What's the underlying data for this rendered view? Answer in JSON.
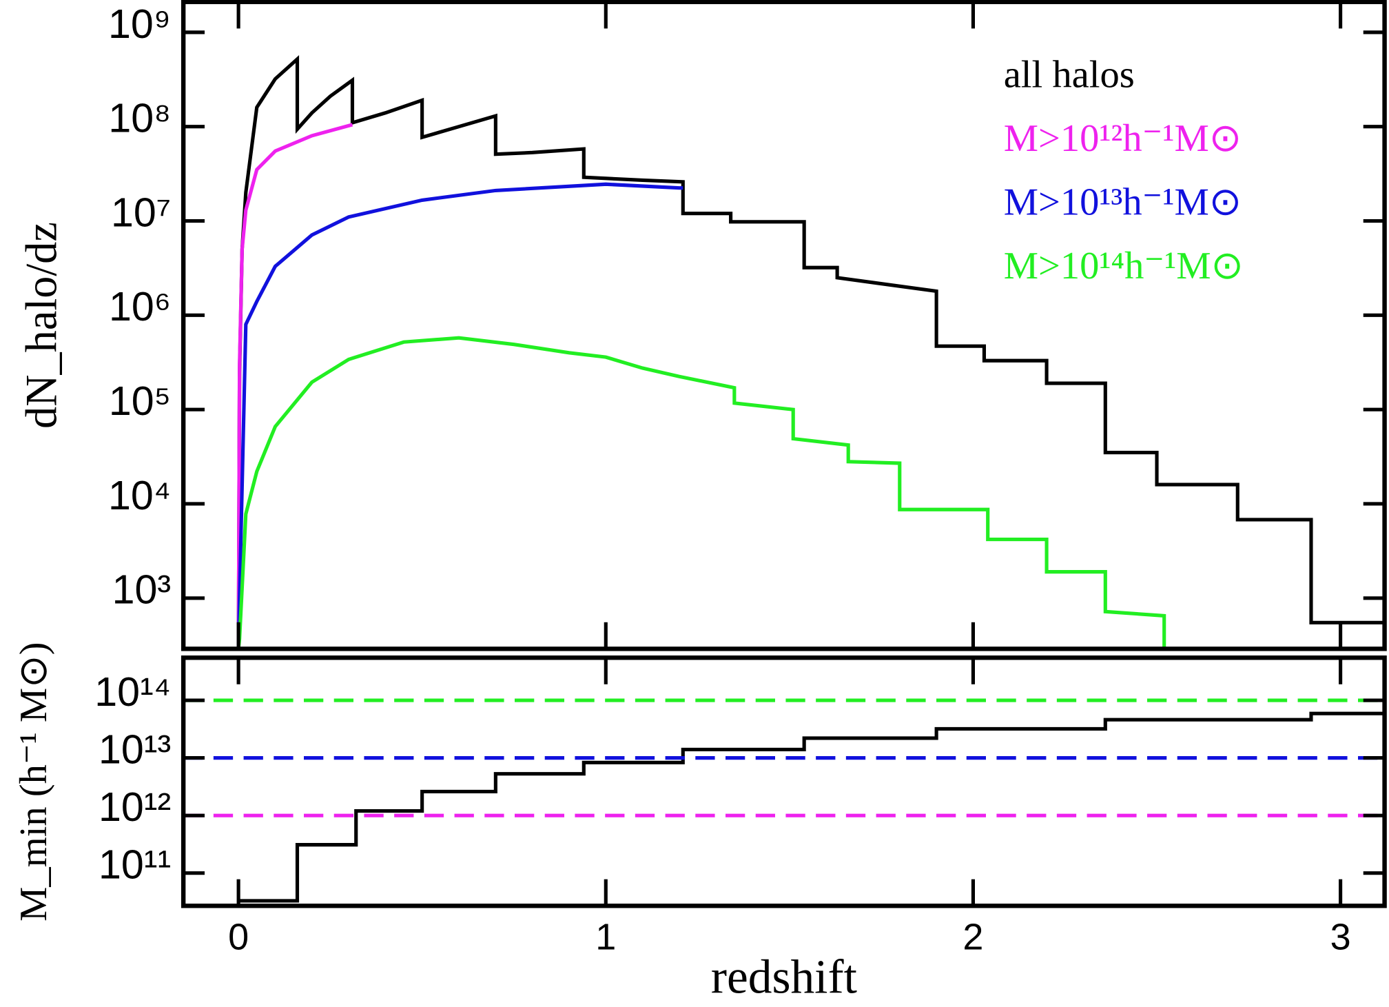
{
  "chart_data": [
    {
      "type": "line",
      "yscale": "log",
      "ylabel": "dN_halo/dz",
      "legend": "upper right",
      "xtick_labels": false,
      "xlim": [
        -0.15,
        3.12
      ],
      "ylim": [
        290,
        2100000000
      ],
      "xticks": [
        0,
        1,
        2,
        3
      ],
      "yticks": [
        {
          "value": 1000,
          "label": "10³"
        },
        {
          "value": 10000,
          "label": "10⁴"
        },
        {
          "value": 100000,
          "label": "10⁵"
        },
        {
          "value": 1000000,
          "label": "10⁶"
        },
        {
          "value": 10000000,
          "label": "10⁷"
        },
        {
          "value": 100000000,
          "label": "10⁸"
        },
        {
          "value": 1000000000,
          "label": "10⁹"
        }
      ],
      "series": [
        {
          "name": "all halos",
          "color": "#000000",
          "x": [
            0,
            0.003,
            0.01,
            0.02,
            0.05,
            0.1,
            0.16,
            0.16,
            0.2,
            0.25,
            0.31,
            0.31,
            0.4,
            0.5,
            0.5,
            0.6,
            0.7,
            0.7,
            0.8,
            0.94,
            0.94,
            1.1,
            1.21,
            1.21,
            1.34,
            1.34,
            1.54,
            1.54,
            1.63,
            1.63,
            1.9,
            1.9,
            2.03,
            2.03,
            2.2,
            2.2,
            2.36,
            2.36,
            2.5,
            2.5,
            2.72,
            2.72,
            2.92,
            2.92,
            3.12
          ],
          "values": [
            290,
            250000,
            5000000,
            20000000,
            160000000,
            320000000,
            520000000,
            94000000,
            140000000,
            210000000,
            310000000,
            110000000,
            140000000,
            190000000,
            77000000,
            100000000,
            130000000,
            51000000,
            53000000,
            58000000,
            29000000,
            27000000,
            26000000,
            12000000,
            12000000,
            9800000,
            9800000,
            3200000,
            3200000,
            2500000,
            1800000,
            470000,
            470000,
            330000,
            330000,
            190000,
            190000,
            35000,
            35000,
            16000,
            16000,
            6800,
            6800,
            550,
            550
          ]
        },
        {
          "name": "M>10¹²h⁻¹M⊙",
          "color": "#ee22ee",
          "x": [
            0,
            0.003,
            0.01,
            0.02,
            0.05,
            0.1,
            0.2,
            0.31
          ],
          "values": [
            290,
            300000,
            5000000,
            13000000,
            35000000,
            55000000,
            80000000,
            105000000
          ]
        },
        {
          "name": "M>10¹³h⁻¹M⊙",
          "color": "#1111dd",
          "x": [
            0,
            0.003,
            0.02,
            0.05,
            0.1,
            0.2,
            0.3,
            0.5,
            0.7,
            1.0,
            1.2,
            1.21
          ],
          "values": [
            290,
            1000,
            800000,
            1400000,
            3300000,
            7100000,
            11000000,
            16600000,
            21000000,
            24500000,
            22400000,
            22400000
          ]
        },
        {
          "name": "M>10¹⁴h⁻¹M⊙",
          "color": "#22ee22",
          "x": [
            0,
            0.003,
            0.02,
            0.05,
            0.1,
            0.2,
            0.3,
            0.45,
            0.6,
            0.75,
            0.9,
            1.0,
            1.1,
            1.2,
            1.35,
            1.35,
            1.51,
            1.51,
            1.66,
            1.66,
            1.8,
            1.8,
            2.04,
            2.04,
            2.2,
            2.2,
            2.36,
            2.36,
            2.52,
            2.52
          ],
          "values": [
            290,
            370,
            7800,
            22000,
            66000,
            195000,
            340000,
            520000,
            575000,
            490000,
            400000,
            360000,
            275000,
            224000,
            170000,
            117000,
            100000,
            49000,
            42000,
            28000,
            27000,
            8700,
            8700,
            4200,
            4200,
            1900,
            1900,
            720,
            650,
            290
          ]
        }
      ]
    },
    {
      "type": "line",
      "yscale": "log",
      "ylabel": "M_min (h⁻¹ M⊙)",
      "xlabel": "redshift",
      "xtick_labels": true,
      "xlim": [
        -0.15,
        3.12
      ],
      "ylim": [
        27000000000,
        550000000000000
      ],
      "xticks": [
        0,
        1,
        2,
        3
      ],
      "yticks": [
        {
          "value": 100000000000,
          "label": "10¹¹"
        },
        {
          "value": 1000000000000,
          "label": "10¹²"
        },
        {
          "value": 10000000000000,
          "label": "10¹³"
        },
        {
          "value": 100000000000000,
          "label": "10¹⁴"
        }
      ],
      "series": [
        {
          "color": "#000000",
          "linestyle": "solid",
          "x": [
            0,
            0.16,
            0.16,
            0.32,
            0.32,
            0.5,
            0.5,
            0.7,
            0.7,
            0.94,
            0.94,
            1.21,
            1.21,
            1.54,
            1.54,
            1.9,
            1.9,
            2.36,
            2.36,
            2.92,
            2.92,
            3.12
          ],
          "values": [
            33000000000,
            33000000000,
            310000000000,
            310000000000,
            1200000000000,
            1200000000000,
            2600000000000,
            2600000000000,
            5300000000000,
            5300000000000,
            8300000000000,
            8300000000000,
            14000000000000,
            14000000000000,
            22000000000000,
            22000000000000,
            32000000000000,
            32000000000000,
            46000000000000,
            46000000000000,
            59000000000000,
            59000000000000
          ]
        },
        {
          "color": "#22ee22",
          "linestyle": "dashed",
          "x": [
            -0.15,
            3.12
          ],
          "values": [
            100000000000000,
            100000000000000
          ]
        },
        {
          "color": "#1111dd",
          "linestyle": "dashed",
          "x": [
            -0.15,
            3.12
          ],
          "values": [
            10000000000000,
            10000000000000
          ]
        },
        {
          "color": "#ee22ee",
          "linestyle": "dashed",
          "x": [
            -0.15,
            3.12
          ],
          "values": [
            1000000000000,
            1000000000000
          ]
        }
      ]
    }
  ]
}
